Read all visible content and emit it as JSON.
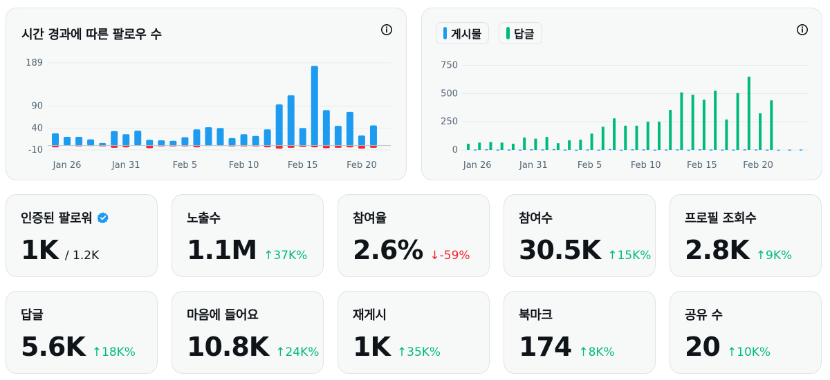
{
  "followers_chart": {
    "title": "시간 경과에 따른 팔로우 수",
    "colors": {
      "gain": "#1d9bf0",
      "loss": "#f4212e",
      "grid": "#e6e9ea",
      "zero": "#b7c0c6"
    }
  },
  "posts_chart": {
    "legend": [
      {
        "label": "게시물",
        "color": "#1d9bf0"
      },
      {
        "label": "답글",
        "color": "#00ba7c"
      }
    ]
  },
  "chart_data": [
    {
      "type": "bar",
      "title": "시간 경과에 따른 팔로우 수",
      "categories": [
        "Jan 25",
        "Jan 26",
        "Jan 27",
        "Jan 28",
        "Jan 29",
        "Jan 30",
        "Jan 31",
        "Feb 1",
        "Feb 2",
        "Feb 3",
        "Feb 4",
        "Feb 5",
        "Feb 6",
        "Feb 7",
        "Feb 8",
        "Feb 9",
        "Feb 10",
        "Feb 11",
        "Feb 12",
        "Feb 13",
        "Feb 14",
        "Feb 15",
        "Feb 16",
        "Feb 17",
        "Feb 18",
        "Feb 19",
        "Feb 20",
        "Feb 21",
        "Feb 22"
      ],
      "series": [
        {
          "name": "gained",
          "values": [
            28,
            20,
            20,
            14,
            6,
            33,
            26,
            34,
            13,
            12,
            11,
            19,
            37,
            42,
            40,
            17,
            26,
            22,
            37,
            94,
            115,
            40,
            182,
            81,
            45,
            77,
            23,
            46,
            0
          ]
        },
        {
          "name": "lost",
          "values": [
            -4,
            0,
            -2,
            -1,
            -2,
            -5,
            -4,
            0,
            -6,
            -2,
            -2,
            -2,
            -4,
            -1,
            -1,
            -2,
            -2,
            -2,
            -4,
            -7,
            -5,
            -3,
            -4,
            -6,
            -5,
            -4,
            -7,
            -5,
            0
          ]
        }
      ],
      "x_tick_labels": [
        "Jan 26",
        "Jan 31",
        "Feb 5",
        "Feb 10",
        "Feb 15",
        "Feb 20"
      ],
      "y_ticks": [
        -10,
        40,
        90,
        189
      ],
      "ylim": [
        -10,
        189
      ],
      "grid": true
    },
    {
      "type": "bar",
      "categories": [
        "Jan 25",
        "Jan 26",
        "Jan 27",
        "Jan 28",
        "Jan 29",
        "Jan 30",
        "Jan 31",
        "Feb 1",
        "Feb 2",
        "Feb 3",
        "Feb 4",
        "Feb 5",
        "Feb 6",
        "Feb 7",
        "Feb 8",
        "Feb 9",
        "Feb 10",
        "Feb 11",
        "Feb 12",
        "Feb 13",
        "Feb 14",
        "Feb 15",
        "Feb 16",
        "Feb 17",
        "Feb 18",
        "Feb 19",
        "Feb 20",
        "Feb 21",
        "Feb 22",
        "Feb 23",
        "Feb 24"
      ],
      "series": [
        {
          "name": "게시물",
          "values": [
            0,
            4,
            6,
            3,
            4,
            3,
            6,
            5,
            7,
            3,
            2,
            4,
            3,
            8,
            2,
            6,
            5,
            3,
            4,
            5,
            2,
            6,
            4,
            3,
            3,
            5,
            4,
            3,
            2,
            3,
            4
          ]
        },
        {
          "name": "답글",
          "values": [
            55,
            65,
            70,
            65,
            55,
            110,
            100,
            115,
            60,
            85,
            90,
            145,
            205,
            280,
            215,
            215,
            250,
            250,
            355,
            510,
            490,
            445,
            525,
            270,
            505,
            650,
            325,
            440,
            0,
            0,
            0
          ]
        }
      ],
      "x_tick_labels": [
        "Jan 26",
        "Jan 31",
        "Feb 5",
        "Feb 10",
        "Feb 15",
        "Feb 20"
      ],
      "y_ticks": [
        0,
        250,
        500,
        750
      ],
      "ylim": [
        0,
        760
      ],
      "grid": true
    }
  ],
  "stats": [
    {
      "label": "인증된 팔로워",
      "value": "1K",
      "sub": "/ 1.2K",
      "verified": true
    },
    {
      "label": "노출수",
      "value": "1.1M",
      "change": "↑37K%",
      "direction": "up"
    },
    {
      "label": "참여율",
      "value": "2.6%",
      "change": "↓-59%",
      "direction": "down"
    },
    {
      "label": "참여수",
      "value": "30.5K",
      "change": "↑15K%",
      "direction": "up"
    },
    {
      "label": "프로필 조회수",
      "value": "2.8K",
      "change": "↑9K%",
      "direction": "up"
    },
    {
      "label": "답글",
      "value": "5.6K",
      "change": "↑18K%",
      "direction": "up"
    },
    {
      "label": "마음에 들어요",
      "value": "10.8K",
      "change": "↑24K%",
      "direction": "up"
    },
    {
      "label": "재게시",
      "value": "1K",
      "change": "↑35K%",
      "direction": "up"
    },
    {
      "label": "북마크",
      "value": "174",
      "change": "↑8K%",
      "direction": "up"
    },
    {
      "label": "공유 수",
      "value": "20",
      "change": "↑10K%",
      "direction": "up"
    }
  ]
}
